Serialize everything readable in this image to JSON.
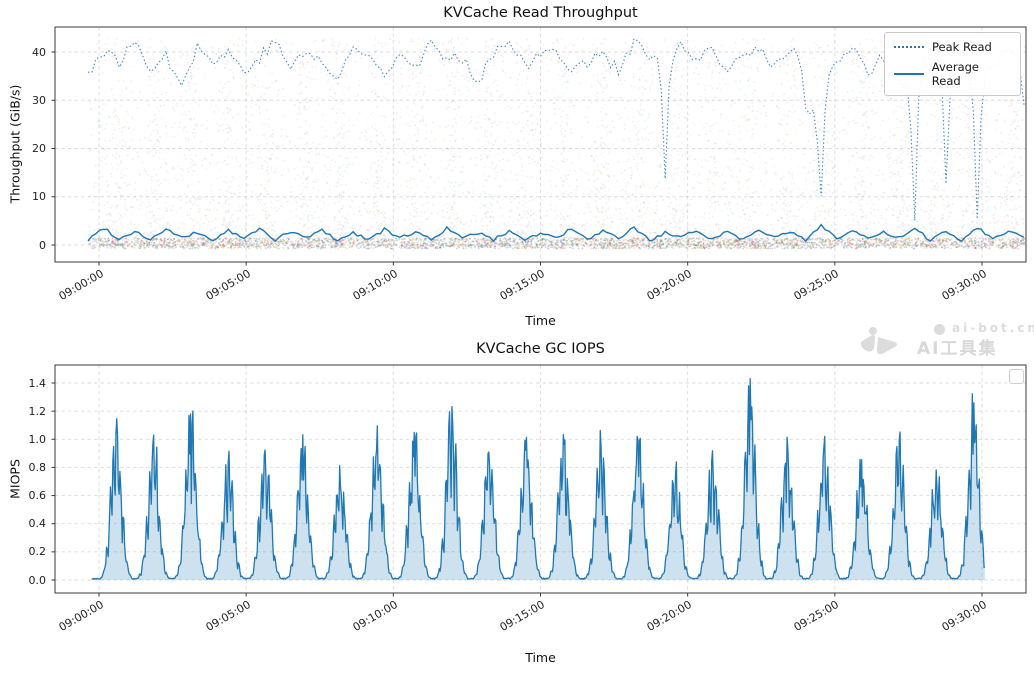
{
  "watermark": {
    "line1": "ai-bot.cn",
    "line2": "AI工具集",
    "color": "#dcdcdc"
  },
  "chart_data": [
    {
      "type": "line",
      "title": "KVCache Read Throughput",
      "xlabel": "Time",
      "ylabel": "Throughput (GiB/s)",
      "x_tick_labels": [
        "09:00:00",
        "09:05:00",
        "09:10:00",
        "09:15:00",
        "09:20:00",
        "09:25:00",
        "09:30:00"
      ],
      "y_tick_labels": [
        "0",
        "10",
        "20",
        "30",
        "40"
      ],
      "ylim": [
        -3.5,
        45.2
      ],
      "grid": true,
      "grid_style": "dashed",
      "legend": {
        "position": "upper-right",
        "entries": [
          {
            "label": "Peak Read",
            "line_style": "dotted",
            "color": "#1f77b4"
          },
          {
            "label": "Average Read",
            "line_style": "solid",
            "color": "#1f77b4"
          }
        ]
      },
      "sample_interval_s": 30,
      "series": [
        {
          "name": "Peak Read",
          "color": "#1f77b4",
          "line_style": "dotted",
          "values_gib_s": [
            36,
            40,
            38,
            42,
            37,
            39,
            34,
            41,
            38,
            40,
            36,
            39,
            42,
            37,
            40,
            38,
            34,
            41,
            39,
            36,
            40,
            37,
            42,
            38,
            39,
            34,
            40,
            43,
            37,
            39,
            41,
            36,
            38,
            40,
            36,
            42,
            39,
            15,
            41,
            38,
            40,
            36,
            39,
            41,
            37,
            40,
            28,
            9,
            38,
            41,
            36,
            39,
            34,
            6,
            40,
            13,
            37,
            5,
            36,
            41,
            29
          ]
        },
        {
          "name": "Average Read",
          "color": "#1f77b4",
          "line_style": "solid",
          "values_gib_s": [
            1.0,
            3.6,
            1.2,
            2.9,
            1.1,
            3.3,
            1.4,
            2.6,
            1.0,
            3.0,
            1.3,
            3.4,
            1.1,
            2.7,
            1.5,
            3.1,
            1.0,
            2.5,
            1.2,
            3.2,
            1.4,
            2.8,
            1.1,
            3.5,
            1.3,
            2.6,
            1.0,
            3.0,
            1.2,
            2.4,
            1.5,
            3.3,
            1.1,
            2.8,
            1.3,
            3.6,
            1.0,
            2.5,
            1.4,
            3.1,
            1.2,
            2.9,
            1.1,
            3.4,
            1.5,
            2.7,
            1.0,
            4.2,
            1.3,
            3.0,
            1.2,
            2.6,
            1.4,
            3.2,
            1.1,
            2.8,
            1.0,
            3.7,
            1.3,
            2.9,
            1.6
          ]
        }
      ],
      "background_scatter": {
        "description": "dense faint multicolor per-sample dots, denser near 0 with dark band 0-1.5 GiB/s, density pulses aligned with GC cycle",
        "palette": [
          "#1f77b4",
          "#ff7f0e",
          "#2ca02c",
          "#d62728",
          "#9467bd",
          "#8c564b",
          "#e377c2",
          "#7f7f7f",
          "#bcbd22",
          "#17becf"
        ],
        "alpha": 0.13,
        "value_range_gib_s": [
          0,
          43
        ],
        "dense_band_gib_s": [
          0,
          1.5
        ]
      }
    },
    {
      "type": "area",
      "title": "KVCache GC IOPS",
      "xlabel": "Time",
      "ylabel": "MIOPS",
      "x_tick_labels": [
        "09:00:00",
        "09:05:00",
        "09:10:00",
        "09:15:00",
        "09:20:00",
        "09:25:00",
        "09:30:00"
      ],
      "y_tick_labels": [
        "0.0",
        "0.2",
        "0.4",
        "0.6",
        "0.8",
        "1.0",
        "1.2",
        "1.4"
      ],
      "ylim": [
        -0.09,
        1.53
      ],
      "grid": true,
      "grid_style": "dashed",
      "line_color": "#1f77b4",
      "fill_color": "rgba(31,119,180,0.22)",
      "baseline_miops": 0.01,
      "start_time": "09:00:00",
      "spike_period_s": 76,
      "spike_times_s": [
        35,
        111,
        187,
        263,
        339,
        415,
        491,
        567,
        643,
        719,
        795,
        871,
        947,
        1023,
        1099,
        1175,
        1251,
        1327,
        1403,
        1479,
        1555,
        1631,
        1707,
        1783
      ],
      "spike_peaks_miops": [
        1.07,
        1.03,
        1.18,
        0.85,
        0.95,
        1.05,
        0.8,
        1.1,
        1.06,
        1.24,
        0.92,
        1.02,
        1.04,
        0.97,
        1.02,
        0.78,
        0.93,
        1.43,
        1.0,
        1.05,
        0.88,
        1.02,
        0.8,
        1.27
      ],
      "empty_legend_box": true
    }
  ]
}
